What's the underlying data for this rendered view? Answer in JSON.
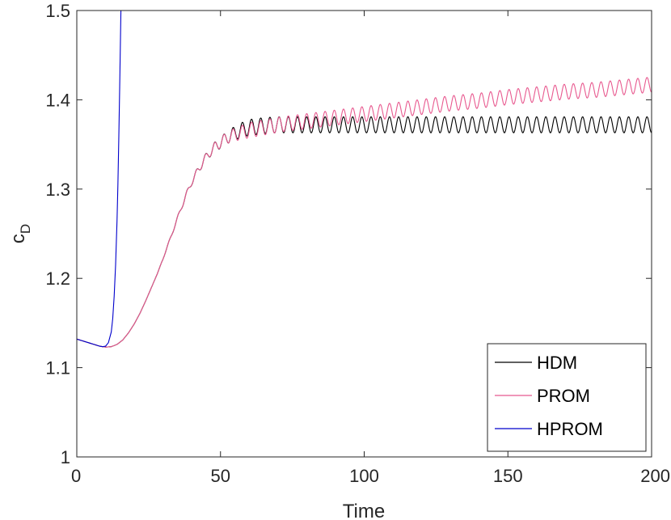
{
  "chart_data": {
    "type": "line",
    "title": "",
    "xlabel": "Time",
    "ylabel": "c",
    "ylabel_subscript": "D",
    "xlim": [
      0,
      200
    ],
    "ylim": [
      1.0,
      1.5
    ],
    "xticks": [
      0,
      50,
      100,
      150,
      200
    ],
    "xtick_labels": [
      "0",
      "50",
      "100",
      "150",
      "200"
    ],
    "yticks": [
      1.0,
      1.1,
      1.2,
      1.3,
      1.4,
      1.5
    ],
    "ytick_labels": [
      "1",
      "1.1",
      "1.2",
      "1.3",
      "1.4",
      "1.5"
    ],
    "grid": false,
    "box": true,
    "legend": {
      "location": "bottom-right",
      "entries": [
        "HDM",
        "PROM",
        "HPROM"
      ]
    },
    "series": [
      {
        "name": "HDM",
        "color": "#000000",
        "x": [
          0,
          2,
          4,
          6,
          8,
          10,
          12,
          14,
          16,
          18,
          20,
          22,
          24,
          26,
          28,
          30,
          32,
          34,
          36,
          38,
          40,
          42,
          44,
          46,
          48,
          50,
          52,
          54,
          56,
          58,
          60,
          65,
          70,
          75,
          80,
          90,
          100,
          120,
          140,
          160,
          180,
          200
        ],
        "y": [
          1.132,
          1.13,
          1.128,
          1.126,
          1.124,
          1.123,
          1.1235,
          1.126,
          1.131,
          1.139,
          1.149,
          1.161,
          1.175,
          1.19,
          1.205,
          1.222,
          1.24,
          1.258,
          1.276,
          1.293,
          1.308,
          1.32,
          1.331,
          1.34,
          1.347,
          1.352,
          1.357,
          1.361,
          1.364,
          1.367,
          1.369,
          1.371,
          1.372,
          1.372,
          1.372,
          1.372,
          1.372,
          1.372,
          1.372,
          1.372,
          1.372,
          1.372
        ],
        "oscillation": {
          "start_time": 28,
          "period": 3.2,
          "amplitude_full": 0.009,
          "full_after_time": 60
        }
      },
      {
        "name": "PROM",
        "color": "#e8598f",
        "x": [
          0,
          2,
          4,
          6,
          8,
          10,
          12,
          14,
          16,
          18,
          20,
          22,
          24,
          26,
          28,
          30,
          32,
          34,
          36,
          38,
          40,
          42,
          44,
          46,
          48,
          50,
          52,
          54,
          56,
          58,
          60,
          65,
          70,
          75,
          80,
          90,
          100,
          110,
          120,
          130,
          140,
          150,
          160,
          170,
          180,
          190,
          200
        ],
        "y": [
          1.132,
          1.13,
          1.128,
          1.126,
          1.124,
          1.123,
          1.1235,
          1.126,
          1.131,
          1.139,
          1.149,
          1.161,
          1.175,
          1.19,
          1.205,
          1.222,
          1.24,
          1.258,
          1.276,
          1.293,
          1.308,
          1.32,
          1.331,
          1.34,
          1.347,
          1.352,
          1.357,
          1.36,
          1.362,
          1.364,
          1.366,
          1.369,
          1.372,
          1.374,
          1.376,
          1.38,
          1.384,
          1.388,
          1.392,
          1.396,
          1.399,
          1.403,
          1.406,
          1.409,
          1.411,
          1.414,
          1.417
        ],
        "oscillation": {
          "start_time": 28,
          "period": 3.2,
          "amplitude_full": 0.0085,
          "full_after_time": 60
        }
      },
      {
        "name": "HPROM",
        "color": "#0000cc",
        "x": [
          0,
          2,
          4,
          6,
          8,
          9,
          10,
          11,
          12,
          12.5,
          13,
          13.5,
          14,
          14.3,
          14.6,
          14.9,
          15.2,
          15.5
        ],
        "y": [
          1.132,
          1.13,
          1.128,
          1.126,
          1.124,
          1.1235,
          1.124,
          1.128,
          1.14,
          1.155,
          1.18,
          1.215,
          1.265,
          1.305,
          1.355,
          1.41,
          1.47,
          1.53
        ]
      }
    ]
  }
}
